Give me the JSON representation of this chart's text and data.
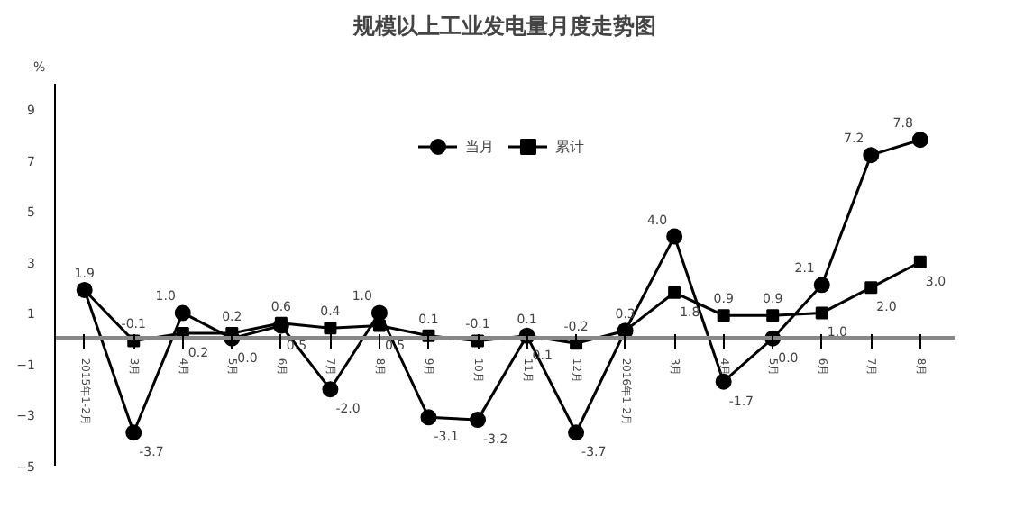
{
  "chart_data": {
    "type": "line",
    "title": "规模以上工业发电量月度走势图",
    "ylabel": "%",
    "categories": [
      "2015年1-2月",
      "3月",
      "4月",
      "5月",
      "6月",
      "7月",
      "8月",
      "9月",
      "10月",
      "11月",
      "12月",
      "2016年1-2月",
      "3月",
      "4月",
      "5月",
      "6月",
      "7月",
      "8月"
    ],
    "series": [
      {
        "name": "当月",
        "color": "#000000",
        "marker": "circle",
        "values": [
          1.9,
          -3.7,
          1.0,
          0.0,
          0.5,
          -2.0,
          1.0,
          -3.1,
          -3.2,
          0.1,
          -3.7,
          0.3,
          4.0,
          -1.7,
          0.0,
          2.1,
          7.2,
          7.8
        ],
        "value_labels": [
          "1.9",
          "-3.7",
          "1.0",
          "0.0",
          "0.5",
          "-2.0",
          "1.0",
          "-3.1",
          "-3.2",
          "0.1",
          "-3.7",
          null,
          "4.0",
          "-1.7",
          "0.0",
          "2.1",
          "7.2",
          "7.8"
        ]
      },
      {
        "name": "累计",
        "color": "#000000",
        "marker": "square",
        "values": [
          1.9,
          -0.1,
          0.2,
          0.2,
          0.6,
          0.4,
          0.5,
          0.1,
          -0.1,
          0.1,
          -0.2,
          0.3,
          1.8,
          0.9,
          0.9,
          1.0,
          2.0,
          3.0
        ],
        "value_labels": [
          null,
          "-0.1",
          "0.2",
          "0.2",
          "0.6",
          "0.4",
          "0.5",
          "0.1",
          "-0.1",
          "0.1",
          "-0.2",
          "0.3",
          "1.8",
          "0.9",
          "0.9",
          "1.0",
          "2.0",
          "3.0"
        ]
      }
    ],
    "ylim": [
      -5,
      10
    ],
    "yticks": [
      -5,
      -3,
      -1,
      1,
      3,
      5,
      7,
      9
    ],
    "grid": false,
    "legend": "top"
  }
}
